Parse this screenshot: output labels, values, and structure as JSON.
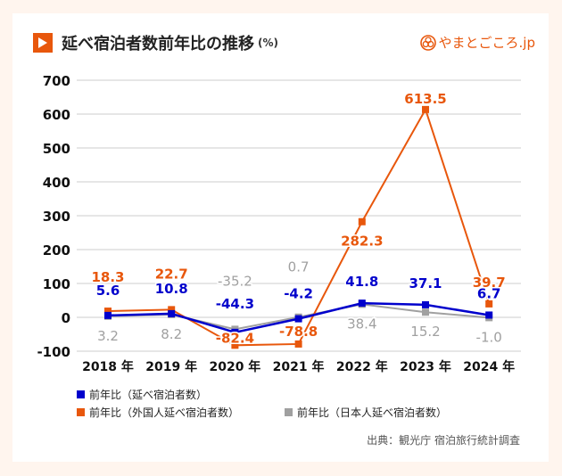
{
  "header": {
    "title": "延べ宿泊者数前年比の推移",
    "unit": "(%)",
    "brand": "やまとごころ.jp"
  },
  "colors": {
    "accent": "#e8570c",
    "total": "#0000cc",
    "foreign": "#e8570c",
    "japanese": "#a0a0a0",
    "grid": "#e6e6e6"
  },
  "legend": [
    {
      "label": "前年比（延べ宿泊者数）",
      "color": "#0000cc"
    },
    {
      "label": "前年比（外国人延べ宿泊者数）",
      "color": "#e8570c"
    },
    {
      "label": "前年比（日本人延べ宿泊者数）",
      "color": "#a0a0a0"
    }
  ],
  "source": "出典：観光庁 宿泊旅行統計調査",
  "chart_data": {
    "type": "line",
    "title": "延べ宿泊者数前年比の推移 (%)",
    "xlabel": "",
    "ylabel": "",
    "categories": [
      "2018 年",
      "2019 年",
      "2020 年",
      "2021 年",
      "2022 年",
      "2023 年",
      "2024 年"
    ],
    "ylim": [
      -100,
      700
    ],
    "yticks": [
      700,
      600,
      500,
      400,
      300,
      200,
      100,
      0,
      -100
    ],
    "grid": true,
    "legend_position": "bottom-left",
    "series": [
      {
        "name": "前年比（延べ宿泊者数）",
        "key": "total",
        "color": "#0000cc",
        "values": [
          5.6,
          10.8,
          -44.3,
          -4.2,
          41.8,
          37.1,
          6.7
        ],
        "labels": [
          "5.6",
          "10.8",
          "-44.3",
          "-4.2",
          "41.8",
          "37.1",
          "6.7"
        ]
      },
      {
        "name": "前年比（外国人延べ宿泊者数）",
        "key": "foreign",
        "color": "#e8570c",
        "values": [
          18.3,
          22.7,
          -82.4,
          -78.8,
          282.3,
          613.5,
          39.7
        ],
        "labels": [
          "18.3",
          "22.7",
          "-82.4",
          "-78.8",
          "282.3",
          "613.5",
          "39.7"
        ]
      },
      {
        "name": "前年比（日本人延べ宿泊者数）",
        "key": "japanese",
        "color": "#a0a0a0",
        "values": [
          3.2,
          8.2,
          -35.2,
          0.7,
          38.4,
          15.2,
          -1.0
        ],
        "labels": [
          "3.2",
          "8.2",
          "-35.2",
          "0.7",
          "38.4",
          "15.2",
          "-1.0"
        ]
      }
    ]
  }
}
